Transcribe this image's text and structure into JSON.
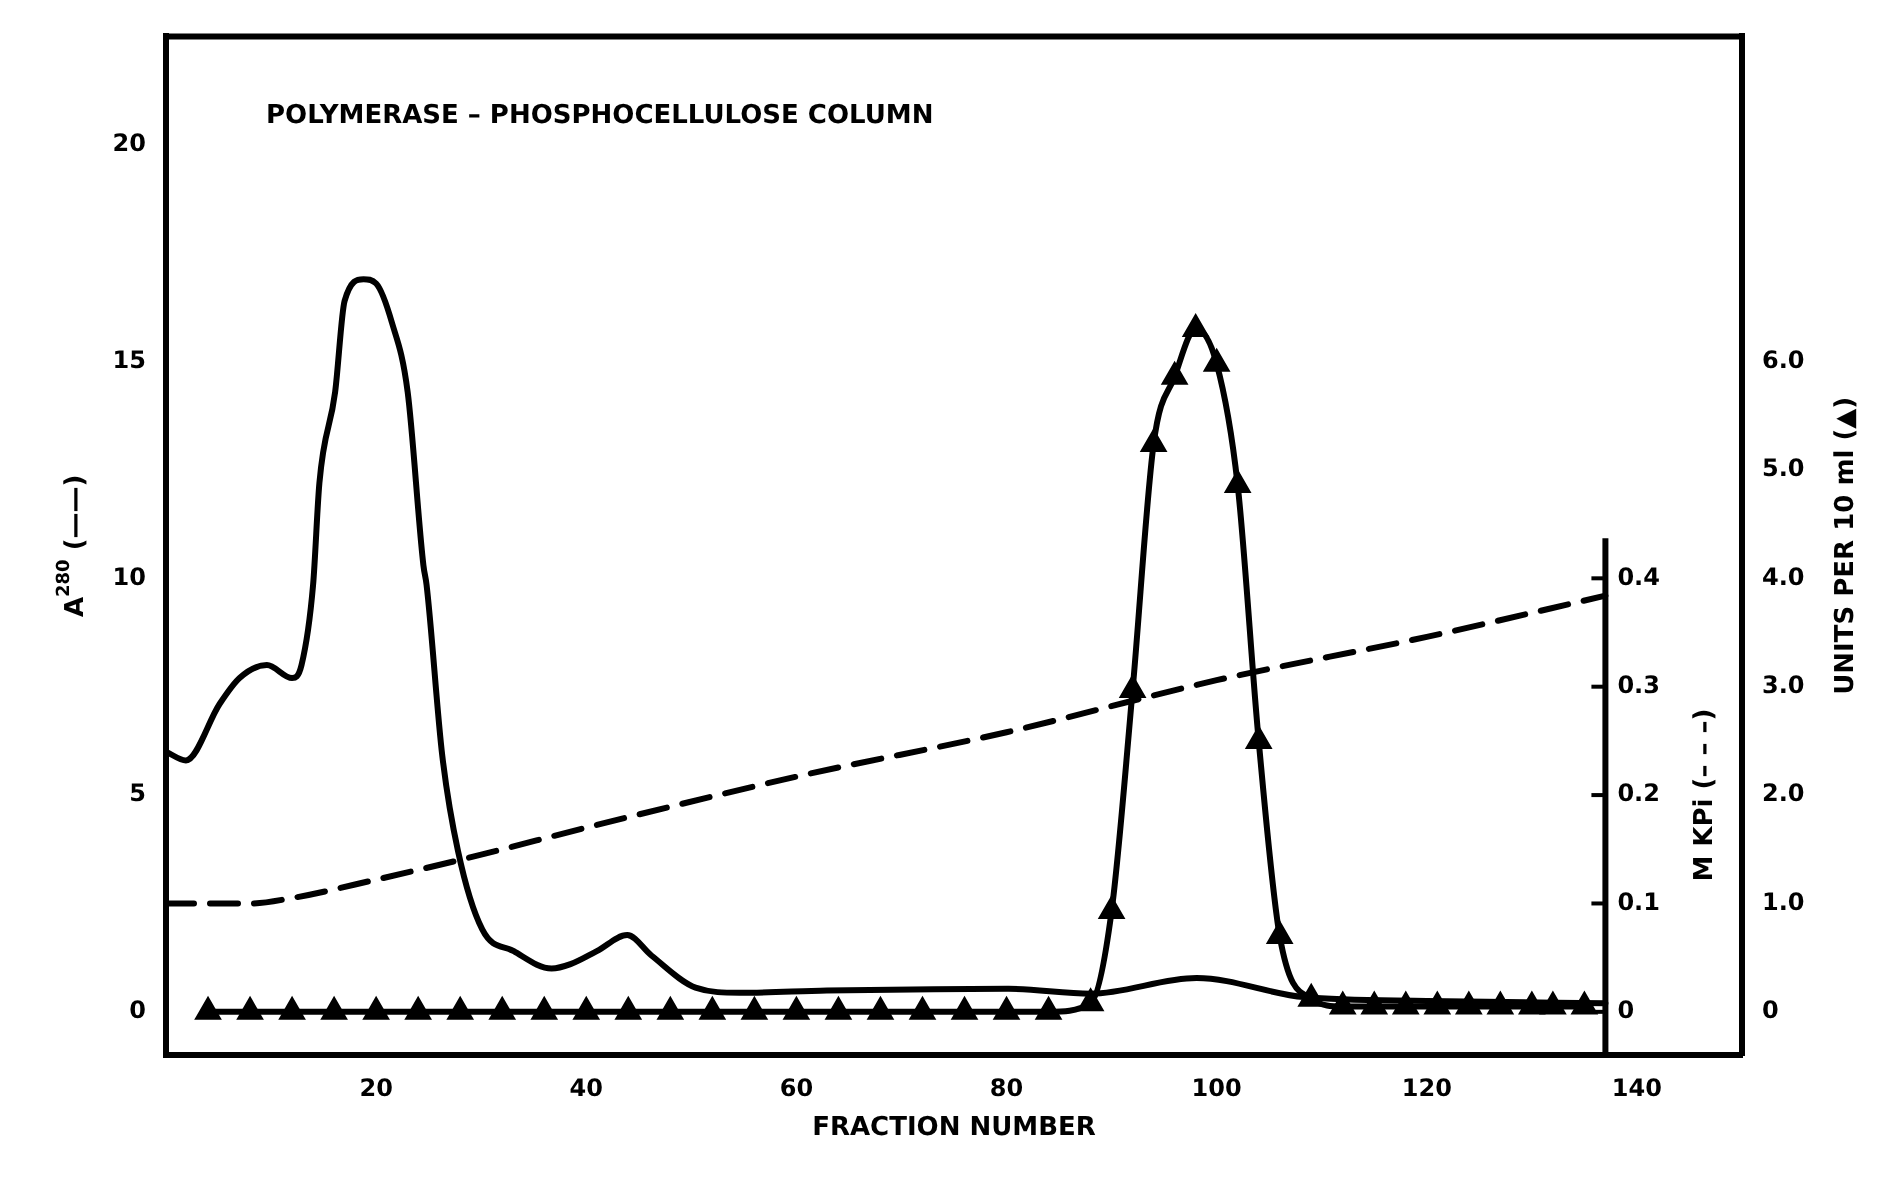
{
  "chart_data": {
    "type": "line",
    "title": "POLYMERASE – PHOSPHOCELLULOSE COLUMN",
    "xlabel": "FRACTION NUMBER",
    "ylabel": "A$^{280}$ (——)",
    "y2label": "UNITS PER 10 ml (▲)",
    "y3label": "M KPi (– – –)",
    "xlim": [
      0,
      150
    ],
    "xticks": [
      20,
      40,
      60,
      80,
      100,
      120,
      140
    ],
    "ylim": [
      -1,
      22.5
    ],
    "yticks": [
      0,
      5,
      10,
      15,
      20
    ],
    "y2lim": [
      -0.4,
      9
    ],
    "y2ticks": [
      0,
      {
        "value": 1,
        "label": "1.0"
      },
      {
        "value": 2,
        "label": "2.0"
      },
      {
        "value": 3,
        "label": "3.0"
      },
      {
        "value": 4,
        "label": "4.0"
      },
      {
        "value": 5,
        "label": "5.0"
      },
      {
        "value": 6,
        "label": "6.0"
      }
    ],
    "y3lim": [
      -0.04,
      0.9
    ],
    "y3ticks": [
      0,
      0.1,
      0.2,
      0.3,
      0.4
    ],
    "series": [
      {
        "axis": "y",
        "color": "#000000",
        "line_style": "solid",
        "marker": "none",
        "x": [
          0,
          1.9,
          5.1,
          7,
          9.6,
          12,
          12.9,
          14,
          14.6,
          16.1,
          17,
          18.8,
          20,
          21.5,
          23,
          24.5,
          24.8,
          26.3,
          27.8,
          30.1,
          33.1,
          36.7,
          38.5,
          41,
          43.9,
          46.2,
          50.4,
          54.6,
          62.9,
          73.1,
          80.2,
          88,
          98.1,
          108.3,
          120,
          137
        ],
        "values": [
          6,
          5.8,
          7.1,
          7.7,
          8,
          7.7,
          8,
          9.85,
          12.2,
          14.3,
          16.4,
          16.9,
          16.8,
          15.9,
          14.3,
          10.3,
          9.85,
          5.9,
          3.7,
          1.9,
          1.4,
          1,
          1.1,
          1.4,
          1.77,
          1.3,
          0.56,
          0.44,
          0.49,
          0.52,
          0.53,
          0.42,
          0.78,
          0.34,
          0.25,
          0.2
        ]
      },
      {
        "axis": "y2",
        "color": "#000000",
        "line_style": "solid",
        "marker": "triangle",
        "x": [
          4,
          8,
          12,
          16,
          20,
          24,
          28,
          32,
          36,
          40,
          44,
          48,
          52,
          56,
          60,
          64,
          68,
          72,
          76,
          80,
          84,
          88,
          90,
          92,
          94,
          96,
          98,
          100,
          102,
          104,
          106,
          109,
          112,
          115,
          118,
          121,
          124,
          127,
          130,
          132,
          135
        ],
        "values": [
          0,
          0,
          0,
          0,
          0,
          0,
          0,
          0,
          0,
          0,
          0,
          0,
          0,
          0,
          0,
          0,
          0,
          0,
          0,
          0,
          0,
          0.08,
          0.93,
          2.97,
          5.24,
          5.86,
          6.3,
          5.98,
          4.86,
          2.5,
          0.7,
          0.12,
          0.05,
          0.05,
          0.05,
          0.05,
          0.05,
          0.05,
          0.05,
          0.05,
          0.05
        ]
      },
      {
        "axis": "y3",
        "color": "#000000",
        "line_style": "dashed",
        "marker": "none",
        "x": [
          0,
          8,
          12,
          20,
          30,
          40,
          60,
          80,
          100,
          120,
          137
        ],
        "values": [
          0.1,
          0.1,
          0.105,
          0.122,
          0.145,
          0.17,
          0.217,
          0.258,
          0.306,
          0.346,
          0.384
        ]
      }
    ]
  }
}
